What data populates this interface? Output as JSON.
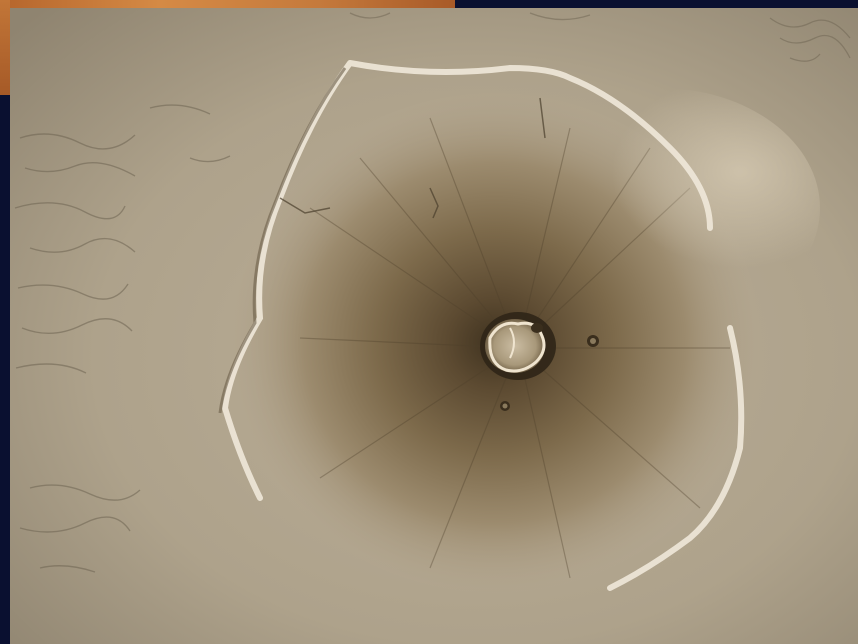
{
  "image": {
    "subject": "olympus-mons-volcano",
    "palette": {
      "plains": "#b4a892",
      "plains_dark": "#9a8e78",
      "flank": "#8c7a5c",
      "flank_dark": "#5f4e36",
      "summit": "#4a3a26",
      "caldera_rim": "#e8dcc6",
      "escarpment_light": "#efe7d8",
      "border": "#0a1030",
      "accent_orange": "#c67a3a"
    }
  }
}
